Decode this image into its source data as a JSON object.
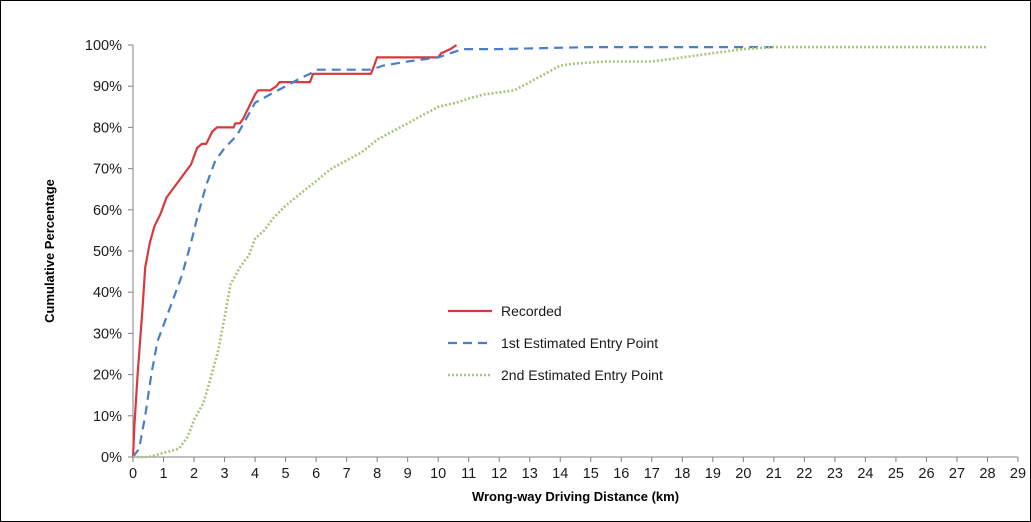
{
  "chart_data": {
    "type": "line",
    "title": "",
    "xlabel": "Wrong-way Driving Distance (km)",
    "ylabel": "Cumulative Percentage",
    "x_tick_labels": [
      "0",
      "1",
      "2",
      "3",
      "4",
      "5",
      "6",
      "7",
      "8",
      "9",
      "10",
      "11",
      "12",
      "13",
      "14",
      "15",
      "16",
      "17",
      "18",
      "19",
      "20",
      "21",
      "22",
      "23",
      "24",
      "25",
      "26",
      "27",
      "28",
      "29"
    ],
    "y_tick_labels": [
      "0%",
      "10%",
      "20%",
      "30%",
      "40%",
      "50%",
      "60%",
      "70%",
      "80%",
      "90%",
      "100%"
    ],
    "ylim": [
      0,
      100
    ],
    "grid": false,
    "legend_position": "center",
    "series": [
      {
        "name": "Recorded",
        "color": "#d9393c",
        "dash": "solid",
        "points": [
          [
            0,
            0
          ],
          [
            0.05,
            8
          ],
          [
            0.15,
            20
          ],
          [
            0.3,
            35
          ],
          [
            0.4,
            46
          ],
          [
            0.55,
            52
          ],
          [
            0.7,
            56
          ],
          [
            0.9,
            59
          ],
          [
            1.1,
            63
          ],
          [
            1.4,
            66
          ],
          [
            1.7,
            69
          ],
          [
            1.9,
            71
          ],
          [
            2.1,
            75
          ],
          [
            2.25,
            76
          ],
          [
            2.4,
            76
          ],
          [
            2.6,
            79
          ],
          [
            2.75,
            80
          ],
          [
            3.1,
            80
          ],
          [
            3.3,
            80
          ],
          [
            3.35,
            81
          ],
          [
            3.5,
            81
          ],
          [
            3.6,
            82
          ],
          [
            3.8,
            85
          ],
          [
            4.0,
            88
          ],
          [
            4.1,
            89
          ],
          [
            4.5,
            89
          ],
          [
            4.7,
            90
          ],
          [
            4.8,
            91
          ],
          [
            5.0,
            91
          ],
          [
            5.5,
            91
          ],
          [
            5.8,
            91
          ],
          [
            5.9,
            93
          ],
          [
            6.5,
            93
          ],
          [
            7.2,
            93
          ],
          [
            7.8,
            93
          ],
          [
            7.9,
            95
          ],
          [
            8.0,
            97
          ],
          [
            9.0,
            97
          ],
          [
            10.0,
            97
          ],
          [
            10.1,
            98
          ],
          [
            10.4,
            99
          ],
          [
            10.6,
            100
          ]
        ]
      },
      {
        "name": "1st Estimated Entry Point",
        "color": "#4a7ec6",
        "dash": "dashed",
        "points": [
          [
            0,
            0
          ],
          [
            0.2,
            2
          ],
          [
            0.4,
            10
          ],
          [
            0.6,
            20
          ],
          [
            0.8,
            28
          ],
          [
            1.0,
            32
          ],
          [
            1.3,
            38
          ],
          [
            1.6,
            44
          ],
          [
            1.9,
            52
          ],
          [
            2.1,
            58
          ],
          [
            2.4,
            66
          ],
          [
            2.7,
            72
          ],
          [
            3.0,
            75
          ],
          [
            3.4,
            78
          ],
          [
            3.7,
            82
          ],
          [
            4.0,
            86
          ],
          [
            4.5,
            88
          ],
          [
            5.0,
            90
          ],
          [
            5.5,
            92
          ],
          [
            5.8,
            93
          ],
          [
            6.0,
            94
          ],
          [
            6.5,
            94
          ],
          [
            7.0,
            94
          ],
          [
            7.8,
            94
          ],
          [
            8.2,
            95
          ],
          [
            9.0,
            96
          ],
          [
            10.0,
            97
          ],
          [
            10.8,
            99
          ],
          [
            12.0,
            99
          ],
          [
            15.0,
            99.5
          ],
          [
            19.0,
            99.5
          ],
          [
            21.0,
            99.5
          ]
        ]
      },
      {
        "name": "2nd Estimated Entry Point",
        "color": "#a8c57b",
        "dash": "dotted",
        "points": [
          [
            0,
            0
          ],
          [
            0.5,
            0
          ],
          [
            1.0,
            1
          ],
          [
            1.5,
            2
          ],
          [
            1.8,
            5
          ],
          [
            2.0,
            9
          ],
          [
            2.3,
            13
          ],
          [
            2.5,
            18
          ],
          [
            2.8,
            26
          ],
          [
            3.0,
            34
          ],
          [
            3.2,
            42
          ],
          [
            3.5,
            46
          ],
          [
            3.8,
            49
          ],
          [
            4.0,
            53
          ],
          [
            4.3,
            55
          ],
          [
            4.6,
            58
          ],
          [
            5.0,
            61
          ],
          [
            5.5,
            64
          ],
          [
            6.0,
            67
          ],
          [
            6.5,
            70
          ],
          [
            7.0,
            72
          ],
          [
            7.5,
            74
          ],
          [
            8.0,
            77
          ],
          [
            8.5,
            79
          ],
          [
            9.0,
            81
          ],
          [
            9.5,
            83
          ],
          [
            10.0,
            85
          ],
          [
            10.6,
            86
          ],
          [
            11.0,
            87
          ],
          [
            11.5,
            88
          ],
          [
            12.0,
            88.5
          ],
          [
            12.5,
            89
          ],
          [
            13.0,
            91
          ],
          [
            13.5,
            93
          ],
          [
            14.0,
            95
          ],
          [
            14.5,
            95.5
          ],
          [
            15.5,
            96
          ],
          [
            17.0,
            96
          ],
          [
            18.0,
            97
          ],
          [
            19.0,
            98
          ],
          [
            20.0,
            99
          ],
          [
            21.0,
            99.5
          ],
          [
            24.0,
            99.5
          ],
          [
            28.0,
            99.5
          ]
        ]
      }
    ]
  }
}
